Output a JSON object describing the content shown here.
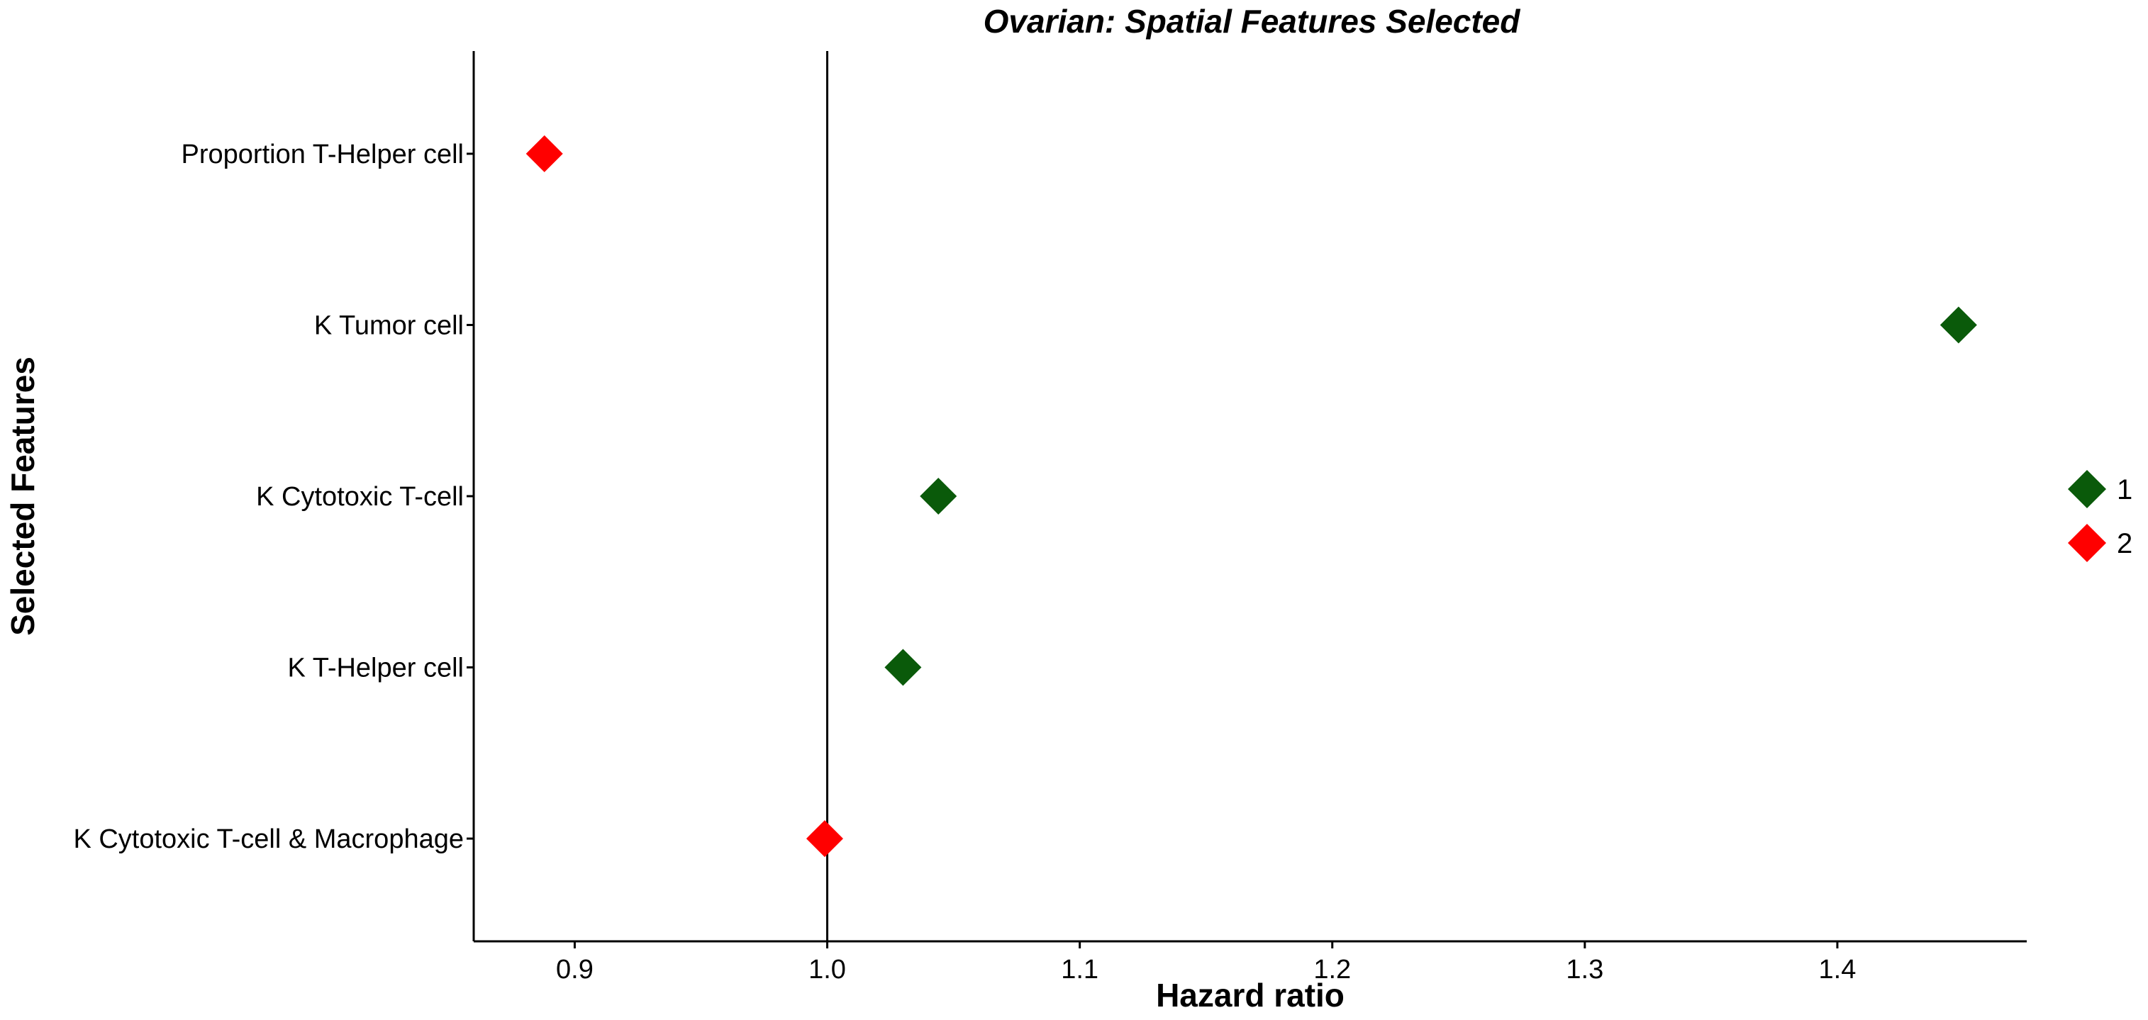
{
  "chart_data": {
    "type": "scatter",
    "title": "Ovarian: Spatial Features Selected",
    "xlabel": "Hazard ratio",
    "ylabel": "Selected Features",
    "xlim": [
      0.86,
      1.475
    ],
    "x_ticks": [
      "0.9",
      "1.0",
      "1.1",
      "1.2",
      "1.3",
      "1.4"
    ],
    "reference_line": 1.0,
    "marker": "diamond",
    "grid": false,
    "legend_position": "right",
    "categories": [
      "Proportion T-Helper cell",
      "K Tumor cell",
      "K Cytotoxic T-cell",
      "K T-Helper cell",
      "K Cytotoxic T-cell & Macrophage"
    ],
    "series": [
      {
        "name": "1",
        "color": "#0a5a0a",
        "points": [
          {
            "category": "K Tumor cell",
            "x": 1.448
          },
          {
            "category": "K Cytotoxic T-cell",
            "x": 1.044
          },
          {
            "category": "K T-Helper cell",
            "x": 1.03
          }
        ]
      },
      {
        "name": "2",
        "color": "#ff0000",
        "points": [
          {
            "category": "Proportion T-Helper cell",
            "x": 0.888
          },
          {
            "category": "K Cytotoxic T-cell & Macrophage",
            "x": 0.999
          }
        ]
      }
    ]
  }
}
